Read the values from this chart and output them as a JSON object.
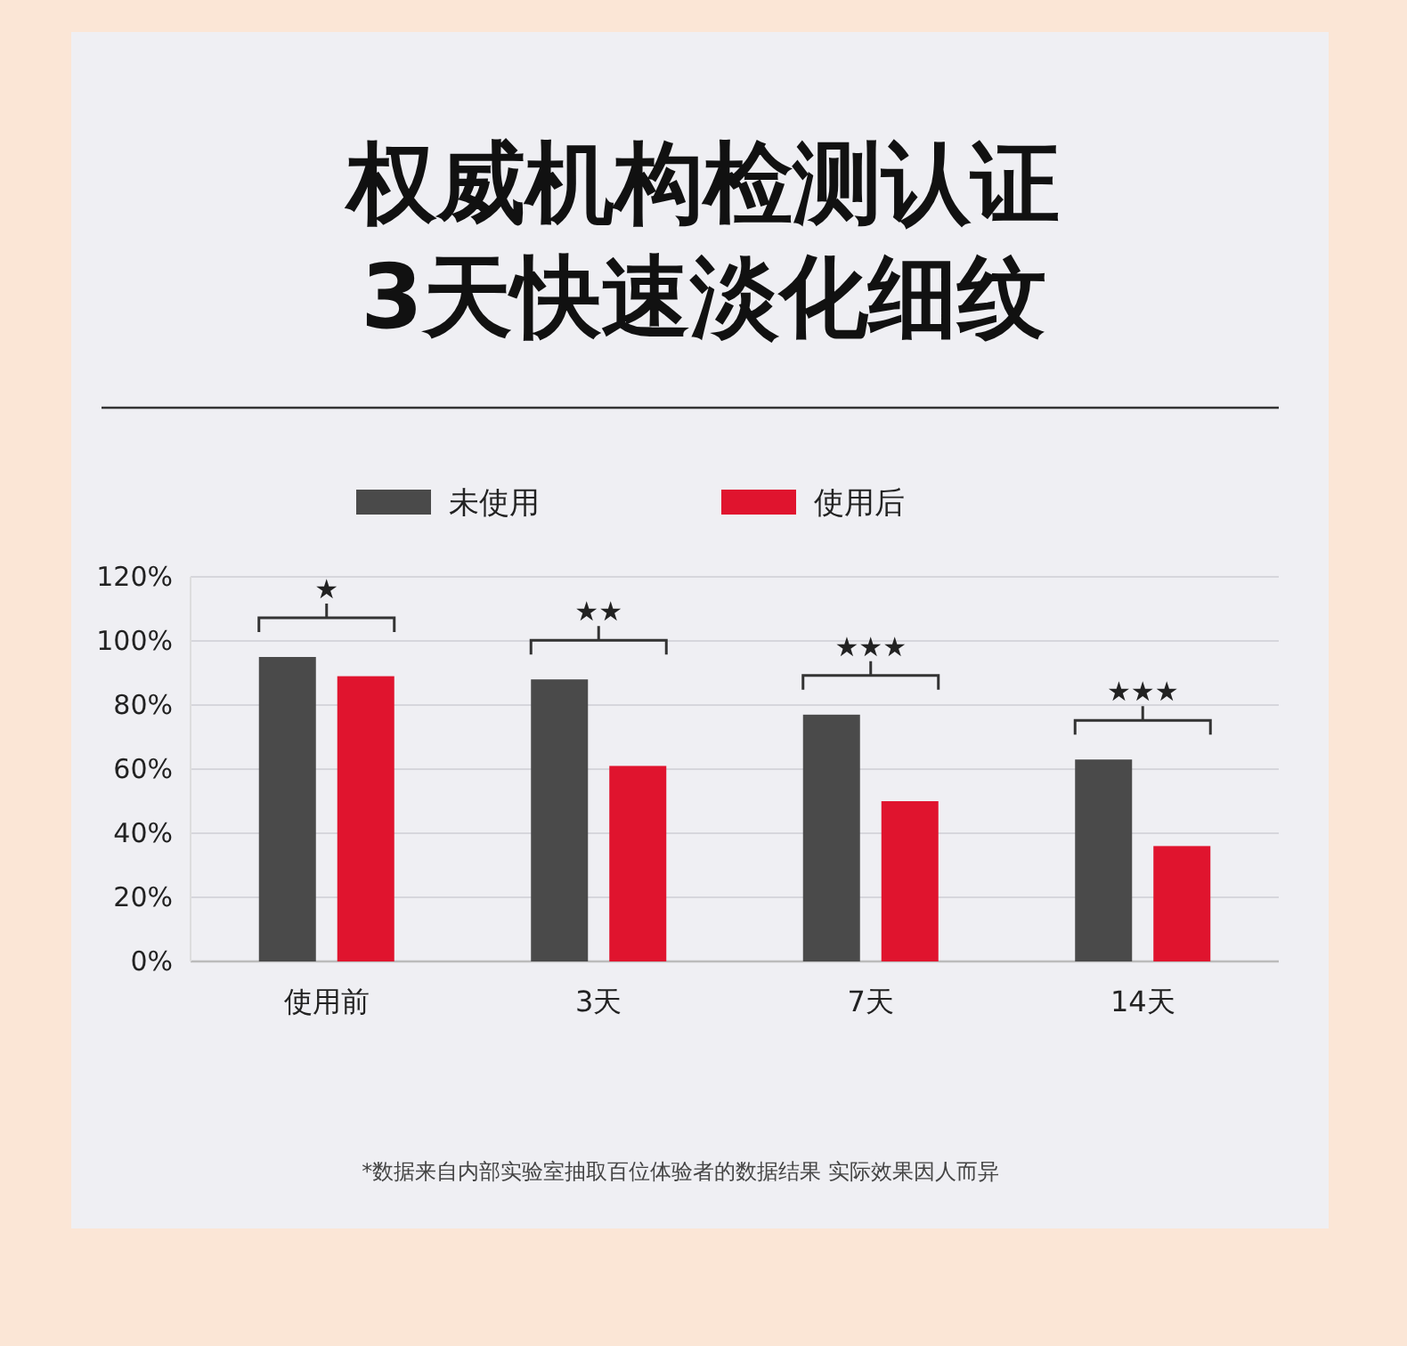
{
  "chart_data": {
    "type": "bar",
    "title": "权威机构检测认证\n3天快速淡化细纹",
    "categories": [
      "使用前",
      "3天",
      "7天",
      "14天"
    ],
    "series": [
      {
        "name": "未使用",
        "color": "#4a4a4a",
        "values": [
          95,
          88,
          77,
          63
        ]
      },
      {
        "name": "使用后",
        "color": "#e0142e",
        "values": [
          89,
          61,
          50,
          36
        ]
      }
    ],
    "ylim": [
      0,
      120
    ],
    "yticks": [
      {
        "value": 0,
        "label": "0%"
      },
      {
        "value": 20,
        "label": "20%"
      },
      {
        "value": 40,
        "label": "40%"
      },
      {
        "value": 60,
        "label": "60%"
      },
      {
        "value": 80,
        "label": "80%"
      },
      {
        "value": 100,
        "label": "100%"
      },
      {
        "value": 120,
        "label": "120%"
      }
    ],
    "grid": "y",
    "legend": "top",
    "annotations": [
      "★",
      "★★",
      "★★★",
      "★★★",
      "*数据来自内部实验室抽取百位体验者的数据结果 实际效果因人而异"
    ]
  }
}
